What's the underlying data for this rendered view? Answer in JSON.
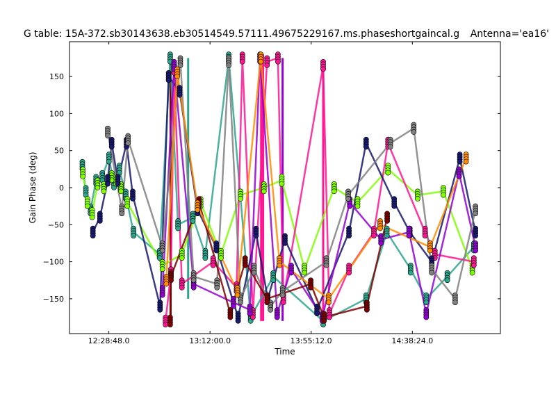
{
  "chart_data": {
    "type": "scatter",
    "title": "G table: 15A-372.sb30143638.eb30514549.57111.49675229167.ms.phaseshortgaincal.g",
    "antenna_label": "Antenna='ea16'",
    "xlabel": "Time",
    "ylabel": "Gain Phase (deg)",
    "x_ticks": [
      "12:28:48.0",
      "13:12:00.0",
      "13:55:12.0",
      "14:38:24.0"
    ],
    "x_tick_seconds": [
      44928,
      47520,
      50112,
      52704
    ],
    "xlim_seconds": [
      43920,
      54960
    ],
    "y_ticks": [
      -150,
      -100,
      -50,
      0,
      50,
      100,
      150
    ],
    "ylim": [
      -197,
      197
    ],
    "grid": false,
    "legend": "none",
    "marker": "circle",
    "series": [
      {
        "color": "#2ca58d",
        "points": [
          [
            44250,
            30
          ],
          [
            44340,
            -5
          ],
          [
            44460,
            -30
          ],
          [
            44600,
            10
          ],
          [
            44760,
            15
          ],
          [
            44930,
            40
          ],
          [
            45060,
            5
          ],
          [
            45200,
            25
          ],
          [
            45360,
            -10
          ],
          [
            45560,
            -60
          ],
          [
            46230,
            -90
          ],
          [
            46500,
            175
          ],
          [
            46700,
            -50
          ],
          [
            47080,
            -40
          ],
          [
            47400,
            -90
          ],
          [
            48000,
            175
          ],
          [
            48560,
            -175
          ],
          [
            49140,
            -120
          ],
          [
            50420,
            -180
          ],
          [
            51520,
            -150
          ],
          [
            52050,
            -60
          ],
          [
            52660,
            -110
          ],
          [
            53060,
            -150
          ],
          [
            53600,
            -120
          ],
          [
            54280,
            -80
          ]
        ]
      },
      {
        "color": "#7fff00",
        "points": [
          [
            44260,
            20
          ],
          [
            44380,
            -20
          ],
          [
            44500,
            -35
          ],
          [
            44640,
            5
          ],
          [
            44800,
            0
          ],
          [
            45000,
            15
          ],
          [
            45120,
            10
          ],
          [
            45240,
            0
          ],
          [
            45400,
            -20
          ],
          [
            46300,
            -105
          ],
          [
            46800,
            -90
          ],
          [
            47280,
            -20
          ],
          [
            47800,
            -90
          ],
          [
            48300,
            -10
          ],
          [
            48900,
            0
          ],
          [
            49360,
            10
          ],
          [
            49940,
            -110
          ],
          [
            50700,
            0
          ],
          [
            51300,
            -20
          ],
          [
            52080,
            25
          ],
          [
            52840,
            -10
          ],
          [
            53500,
            -5
          ],
          [
            54240,
            -110
          ]
        ]
      },
      {
        "color": "#ff1493",
        "points": [
          [
            46380,
            -180
          ],
          [
            46520,
            -115
          ],
          [
            46600,
            160
          ],
          [
            46800,
            -130
          ],
          [
            47600,
            -100
          ],
          [
            48200,
            -135
          ],
          [
            48350,
            175
          ],
          [
            48620,
            -170
          ],
          [
            48980,
            170
          ],
          [
            49260,
            175
          ],
          [
            49400,
            -150
          ],
          [
            50420,
            165
          ],
          [
            50580,
            -170
          ],
          [
            51080,
            -110
          ],
          [
            51720,
            -60
          ],
          [
            52080,
            60
          ],
          [
            53030,
            -60
          ],
          [
            53280,
            -90
          ],
          [
            54280,
            -100
          ]
        ]
      },
      {
        "color": "#191970",
        "points": [
          [
            44520,
            -60
          ],
          [
            44700,
            -40
          ],
          [
            44900,
            10
          ],
          [
            45000,
            60
          ],
          [
            45160,
            10
          ],
          [
            45380,
            60
          ],
          [
            45540,
            -10
          ],
          [
            46240,
            -160
          ],
          [
            46460,
            150
          ],
          [
            46740,
            130
          ],
          [
            47200,
            -30
          ],
          [
            47680,
            -80
          ],
          [
            48240,
            -175
          ],
          [
            48700,
            -60
          ],
          [
            49000,
            -150
          ],
          [
            49440,
            -70
          ],
          [
            50260,
            -165
          ],
          [
            51080,
            -60
          ],
          [
            51520,
            60
          ],
          [
            52240,
            -20
          ],
          [
            52640,
            -60
          ],
          [
            53200,
            -100
          ],
          [
            53920,
            40
          ],
          [
            54320,
            -60
          ]
        ]
      },
      {
        "color": "#9400d3",
        "points": [
          [
            46300,
            -140
          ],
          [
            46600,
            165
          ],
          [
            47100,
            -130
          ],
          [
            48120,
            -155
          ],
          [
            48540,
            -165
          ],
          [
            48800,
            175
          ],
          [
            49240,
            -170
          ],
          [
            49600,
            -110
          ],
          [
            50400,
            -175
          ],
          [
            51100,
            -20
          ],
          [
            51900,
            -70
          ],
          [
            52620,
            -60
          ],
          [
            53060,
            -170
          ],
          [
            53900,
            20
          ],
          [
            54320,
            -80
          ]
        ]
      },
      {
        "color": "#808080",
        "points": [
          [
            44900,
            75
          ],
          [
            45260,
            -30
          ],
          [
            45420,
            65
          ],
          [
            46300,
            -80
          ],
          [
            46760,
            170
          ],
          [
            47100,
            -120
          ],
          [
            47700,
            -130
          ],
          [
            48000,
            170
          ],
          [
            48300,
            -150
          ],
          [
            48650,
            -110
          ],
          [
            49070,
            -160
          ],
          [
            49380,
            -140
          ],
          [
            50500,
            -100
          ],
          [
            51060,
            -10
          ],
          [
            52140,
            60
          ],
          [
            52740,
            80
          ],
          [
            53200,
            -110
          ],
          [
            53800,
            -150
          ],
          [
            54320,
            -30
          ]
        ]
      },
      {
        "color": "#800000",
        "points": [
          [
            46500,
            -180
          ],
          [
            46520,
            -120
          ],
          [
            47240,
            -20
          ],
          [
            48040,
            -170
          ],
          [
            48420,
            -100
          ],
          [
            48980,
            -150
          ],
          [
            50100,
            -130
          ],
          [
            50440,
            -175
          ],
          [
            51540,
            -160
          ],
          [
            52060,
            -40
          ]
        ]
      },
      {
        "color": "#ff8c00",
        "points": [
          [
            46400,
            -125
          ],
          [
            46680,
            155
          ],
          [
            47200,
            -25
          ],
          [
            48220,
            -140
          ],
          [
            48820,
            175
          ],
          [
            49300,
            -100
          ],
          [
            50560,
            -150
          ],
          [
            51880,
            -50
          ],
          [
            53160,
            -80
          ],
          [
            54080,
            40
          ]
        ]
      }
    ],
    "vertical_bands": [
      {
        "color": "#ff1493",
        "x": 48830,
        "y_from": -180,
        "y_to": 180
      },
      {
        "color": "#ff1493",
        "x": 48880,
        "y_from": -180,
        "y_to": 180
      },
      {
        "color": "#ff1493",
        "x": 50420,
        "y_from": -180,
        "y_to": 160
      },
      {
        "color": "#800000",
        "x": 46510,
        "y_from": -180,
        "y_to": 175
      },
      {
        "color": "#2ca58d",
        "x": 46960,
        "y_from": -150,
        "y_to": 175
      },
      {
        "color": "#9400d3",
        "x": 49380,
        "y_from": -180,
        "y_to": 175
      }
    ]
  }
}
